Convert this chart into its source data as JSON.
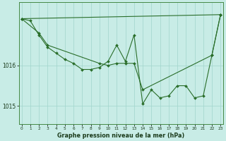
{
  "bg_color": "#c8ece6",
  "grid_color": "#a0d4cc",
  "line_color": "#2a6e2a",
  "xlim": [
    -0.3,
    23.3
  ],
  "ylim": [
    1014.55,
    1017.55
  ],
  "yticks": [
    1015,
    1016
  ],
  "xticks": [
    0,
    1,
    2,
    3,
    4,
    5,
    6,
    7,
    8,
    9,
    10,
    11,
    12,
    13,
    14,
    15,
    16,
    17,
    18,
    19,
    20,
    21,
    22,
    23
  ],
  "line1_x": [
    0,
    1,
    2,
    3,
    4,
    5,
    6,
    7,
    8,
    9,
    10,
    11,
    12,
    13,
    14,
    15,
    16,
    17,
    18,
    19,
    20,
    21,
    22,
    23
  ],
  "line1_y": [
    1017.15,
    1017.1,
    1016.75,
    1016.45,
    1016.3,
    1016.15,
    1016.05,
    1015.9,
    1015.9,
    1015.95,
    1016.1,
    1016.5,
    1016.1,
    1016.75,
    1015.05,
    1015.4,
    1015.2,
    1015.25,
    1015.5,
    1015.5,
    1015.2,
    1015.25,
    1016.25,
    1017.25
  ],
  "line2_x": [
    0,
    2,
    3,
    9,
    10,
    11,
    12,
    13,
    14,
    22,
    23
  ],
  "line2_y": [
    1017.15,
    1016.8,
    1016.5,
    1016.05,
    1016.0,
    1016.05,
    1016.05,
    1016.05,
    1015.4,
    1016.25,
    1017.25
  ],
  "line3_x": [
    0,
    23
  ],
  "line3_y": [
    1017.15,
    1017.25
  ],
  "xlabel": "Graphe pression niveau de la mer (hPa)",
  "markersize": 2.0,
  "linewidth": 0.8
}
